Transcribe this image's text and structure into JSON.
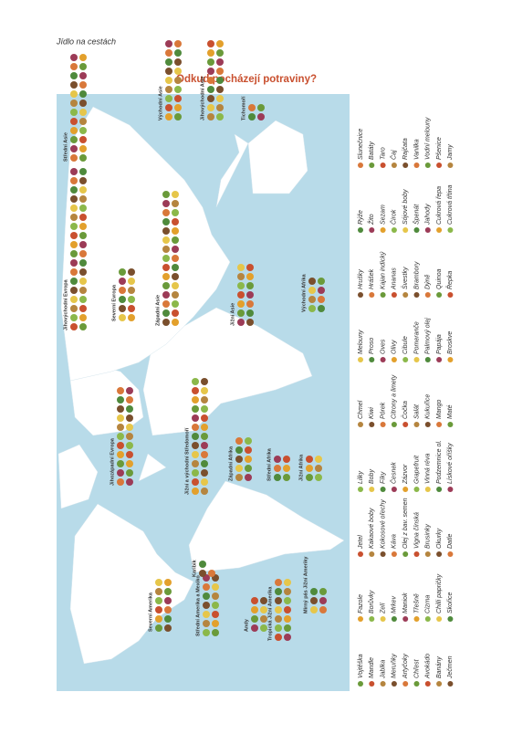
{
  "header": {
    "title": "Jídlo na cestách"
  },
  "title": "Odkud pocházejí potraviny?",
  "regions": [
    {
      "label": "Severní Amerika"
    },
    {
      "label": "Střední Amerika a Mexiko"
    },
    {
      "label": "Karibik"
    },
    {
      "label": "Andy"
    },
    {
      "label": "Tropická Jižní Amerika"
    },
    {
      "label": "Mírný pás Jižní Ameriky"
    },
    {
      "label": "Jihozápadní Evropa"
    },
    {
      "label": "Jižní a východní Středomoří"
    },
    {
      "label": "Západní Afrika"
    },
    {
      "label": "Střední Afrika"
    },
    {
      "label": "Jižní Afrika"
    },
    {
      "label": "Východní Afrika"
    },
    {
      "label": "Západní Asie"
    },
    {
      "label": "Jižní Asie"
    },
    {
      "label": "Jihovýchodní Evropa"
    },
    {
      "label": "Severní Evropa"
    },
    {
      "label": "Střední Asie"
    },
    {
      "label": "Východní Asie"
    },
    {
      "label": "Jihovýchodní Asie"
    },
    {
      "label": "Tichomoří"
    }
  ],
  "legend": [
    [
      "Vojtěška",
      "Mandle",
      "Jablka",
      "Meruňky",
      "Artyčoky",
      "Chřest",
      "Avokádo",
      "Banány",
      "Ječmen"
    ],
    [
      "Fazole",
      "Borůvky",
      "Zelí",
      "Mrkev",
      "Maniok",
      "Třešně",
      "Cizrna",
      "Chilli papričky",
      "Skořice"
    ],
    [
      "Jetel",
      "Kakaové boby",
      "Kokosové ořechy",
      "Káva",
      "Olej z bav. semen",
      "Vigna čínská",
      "Brusinky",
      "Okurky",
      "Datle"
    ],
    [
      "Lilky",
      "Boby",
      "Fíky",
      "Česnek",
      "Zázvor",
      "Grapefruit",
      "Vinná réva",
      "Podzemnice ol.",
      "Lískové oříšky"
    ],
    [
      "Chmel",
      "Kiwi",
      "Pórek",
      "Citrony a limety",
      "Čočka",
      "Salát",
      "Kukuřice",
      "Mango",
      "Maté"
    ],
    [
      "Melouny",
      "Proso",
      "Oves",
      "Olivy",
      "Cibule",
      "Pomeranče",
      "Palmový olej",
      "Papája",
      "Broskve"
    ],
    [
      "Hrušky",
      "Hrášek",
      "Kajan indický",
      "Ananas",
      "Švestky",
      "Brambory",
      "Dýně",
      "Quinoa",
      "Řepka"
    ],
    [
      "Rýže",
      "Žito",
      "Sezam",
      "Čirok",
      "Sójové boby",
      "Špenát",
      "Jahody",
      "Cukrová řepa",
      "Cukrová třtina"
    ],
    [
      "Slunečnice",
      "Batáty",
      "Taro",
      "Čaj",
      "Rajčata",
      "Vanilka",
      "Vodní melouny",
      "Pšenice",
      "Jamy"
    ]
  ]
}
